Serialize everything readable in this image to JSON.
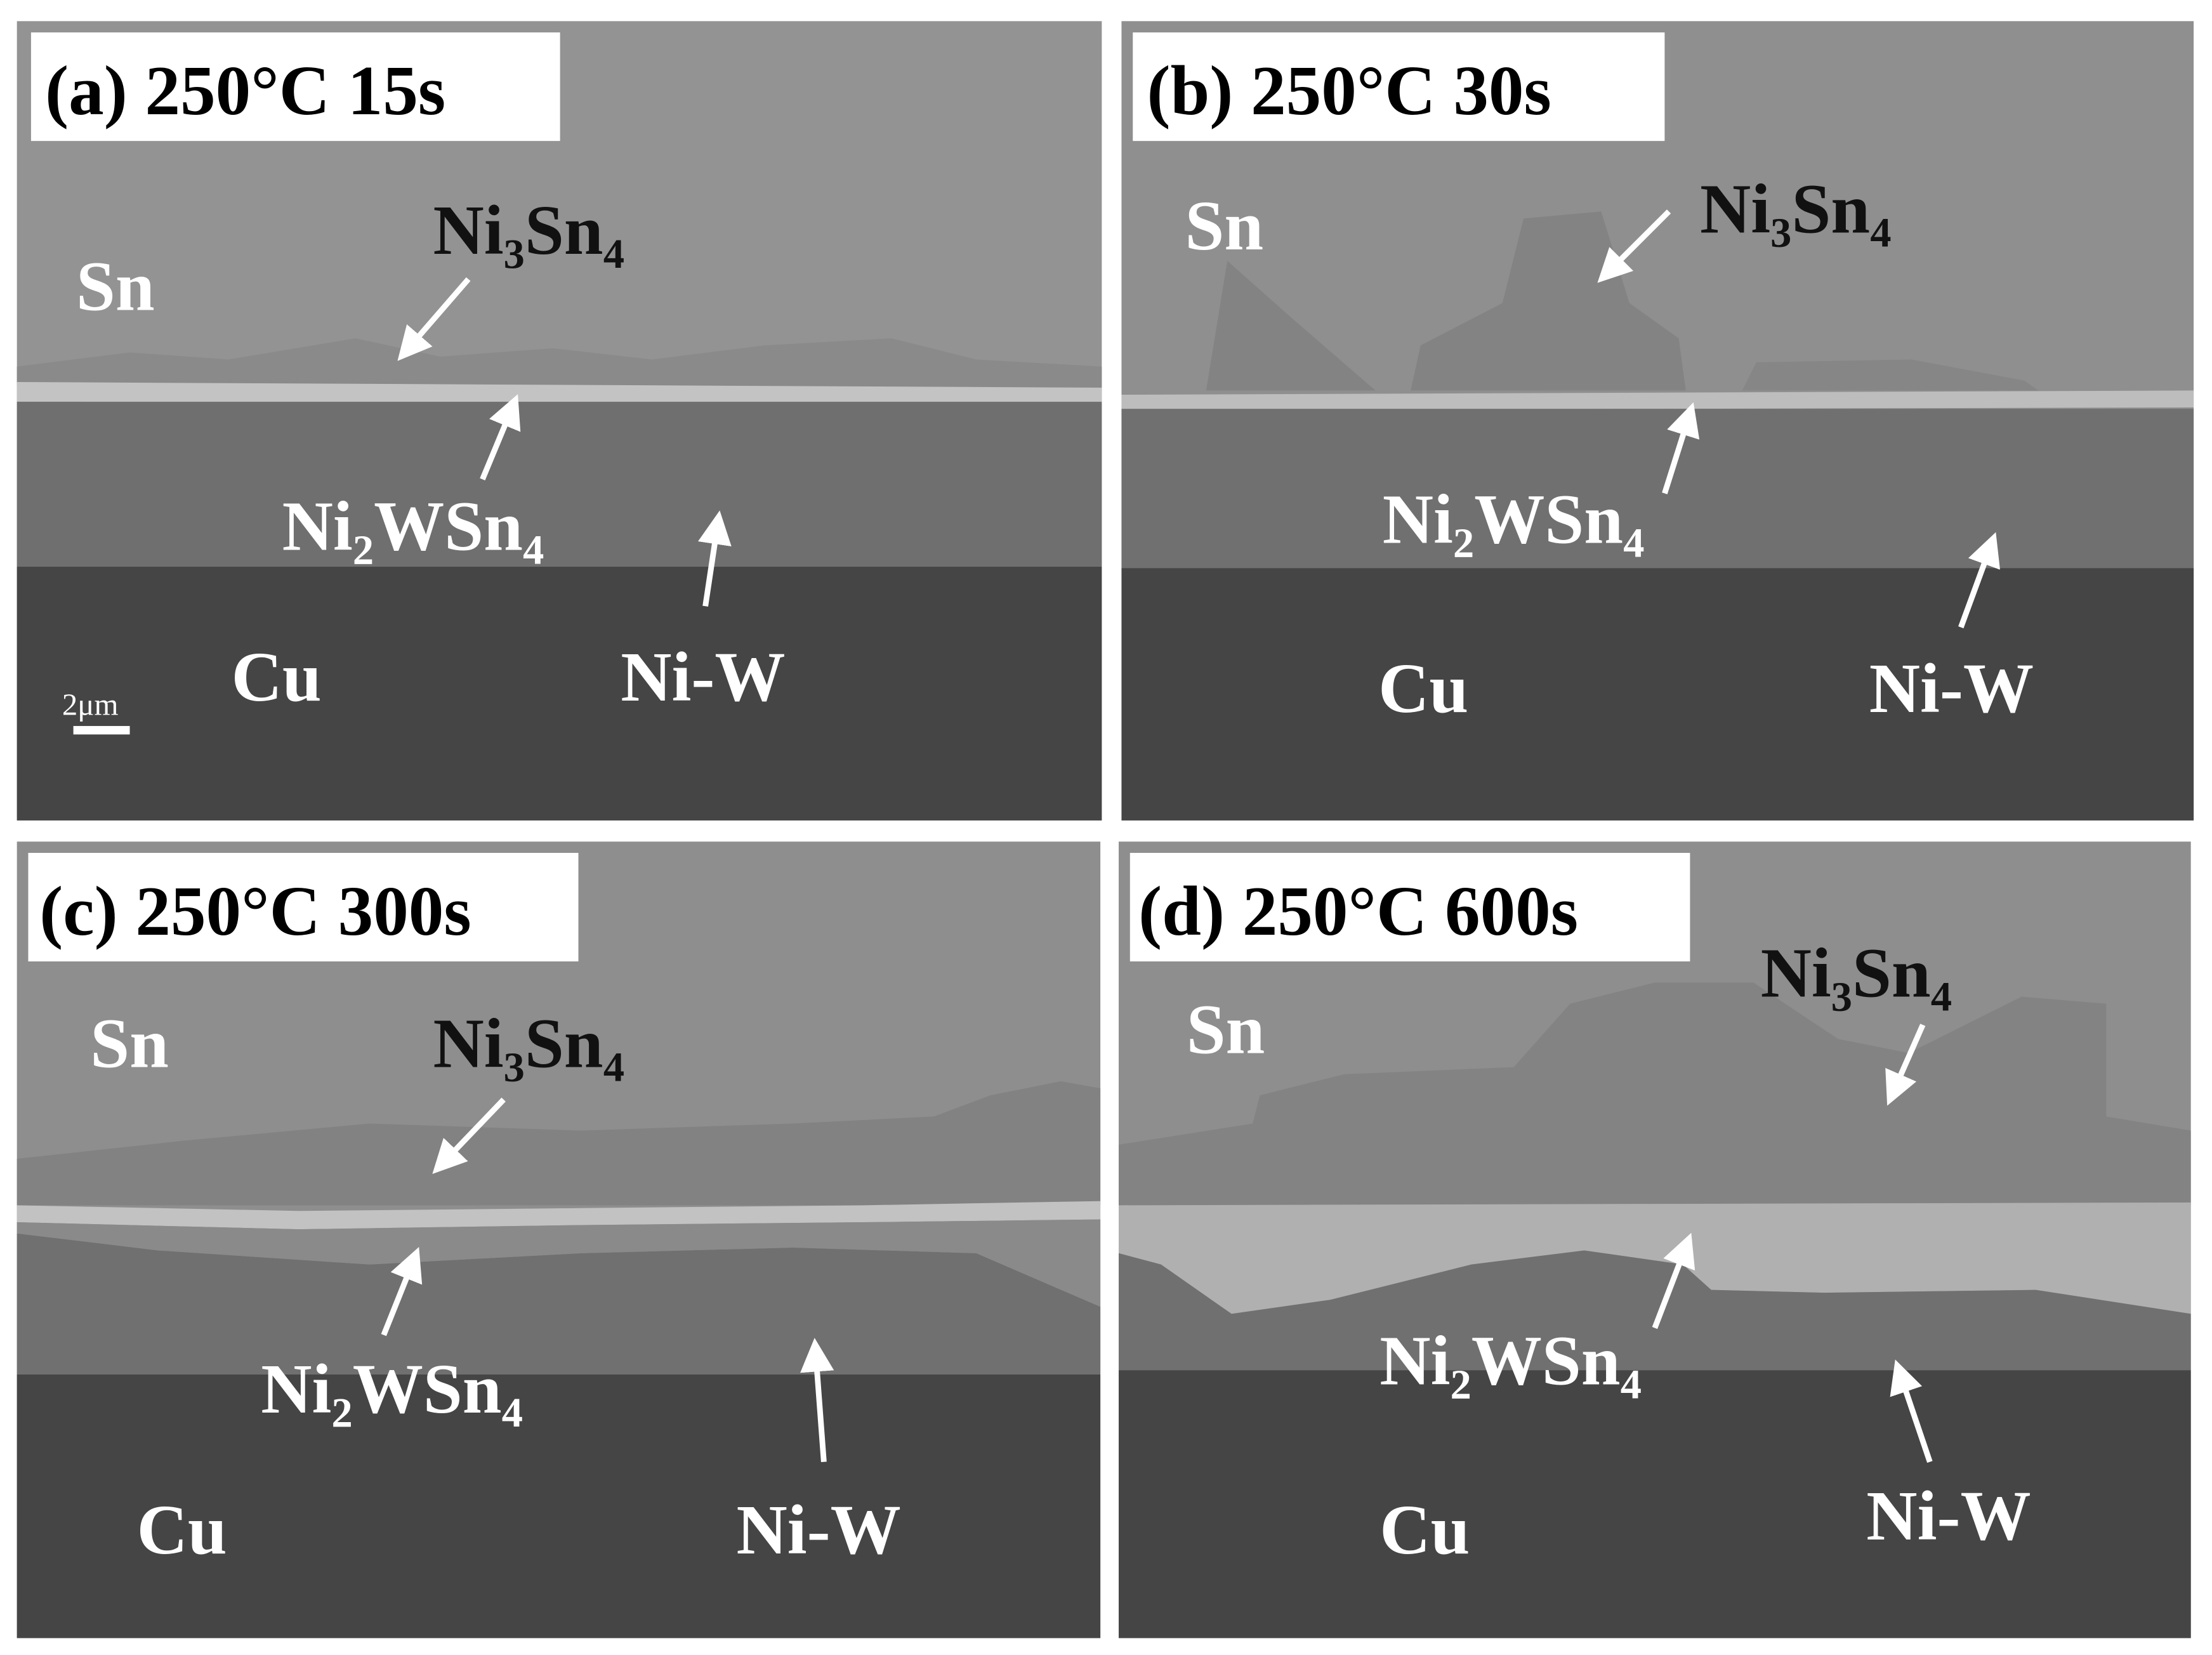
{
  "panels": [
    {
      "title": "(a) 250°C 15s",
      "sn": "Sn",
      "ni3sn4": "Ni₃Sn₄",
      "ni2wsn4": "Ni₂WSn₄",
      "cu": "Cu",
      "niw": "Ni-W"
    },
    {
      "title": "(b) 250°C 30s",
      "sn": "Sn",
      "ni3sn4": "Ni₃Sn₄",
      "ni2wsn4": "Ni₂WSn₄",
      "cu": "Cu",
      "niw": "Ni-W"
    },
    {
      "title": "(c) 250°C 300s",
      "sn": "Sn",
      "ni3sn4": "Ni₃Sn₄",
      "ni2wsn4": "Ni₂WSn₄",
      "cu": "Cu",
      "niw": "Ni-W"
    },
    {
      "title": "(d) 250°C 600s",
      "sn": "Sn",
      "ni3sn4": "Ni₃Sn₄",
      "ni2wsn4": "Ni₂WSn₄",
      "cu": "Cu",
      "niw": "Ni-W"
    }
  ],
  "scale_bar": "2μm"
}
